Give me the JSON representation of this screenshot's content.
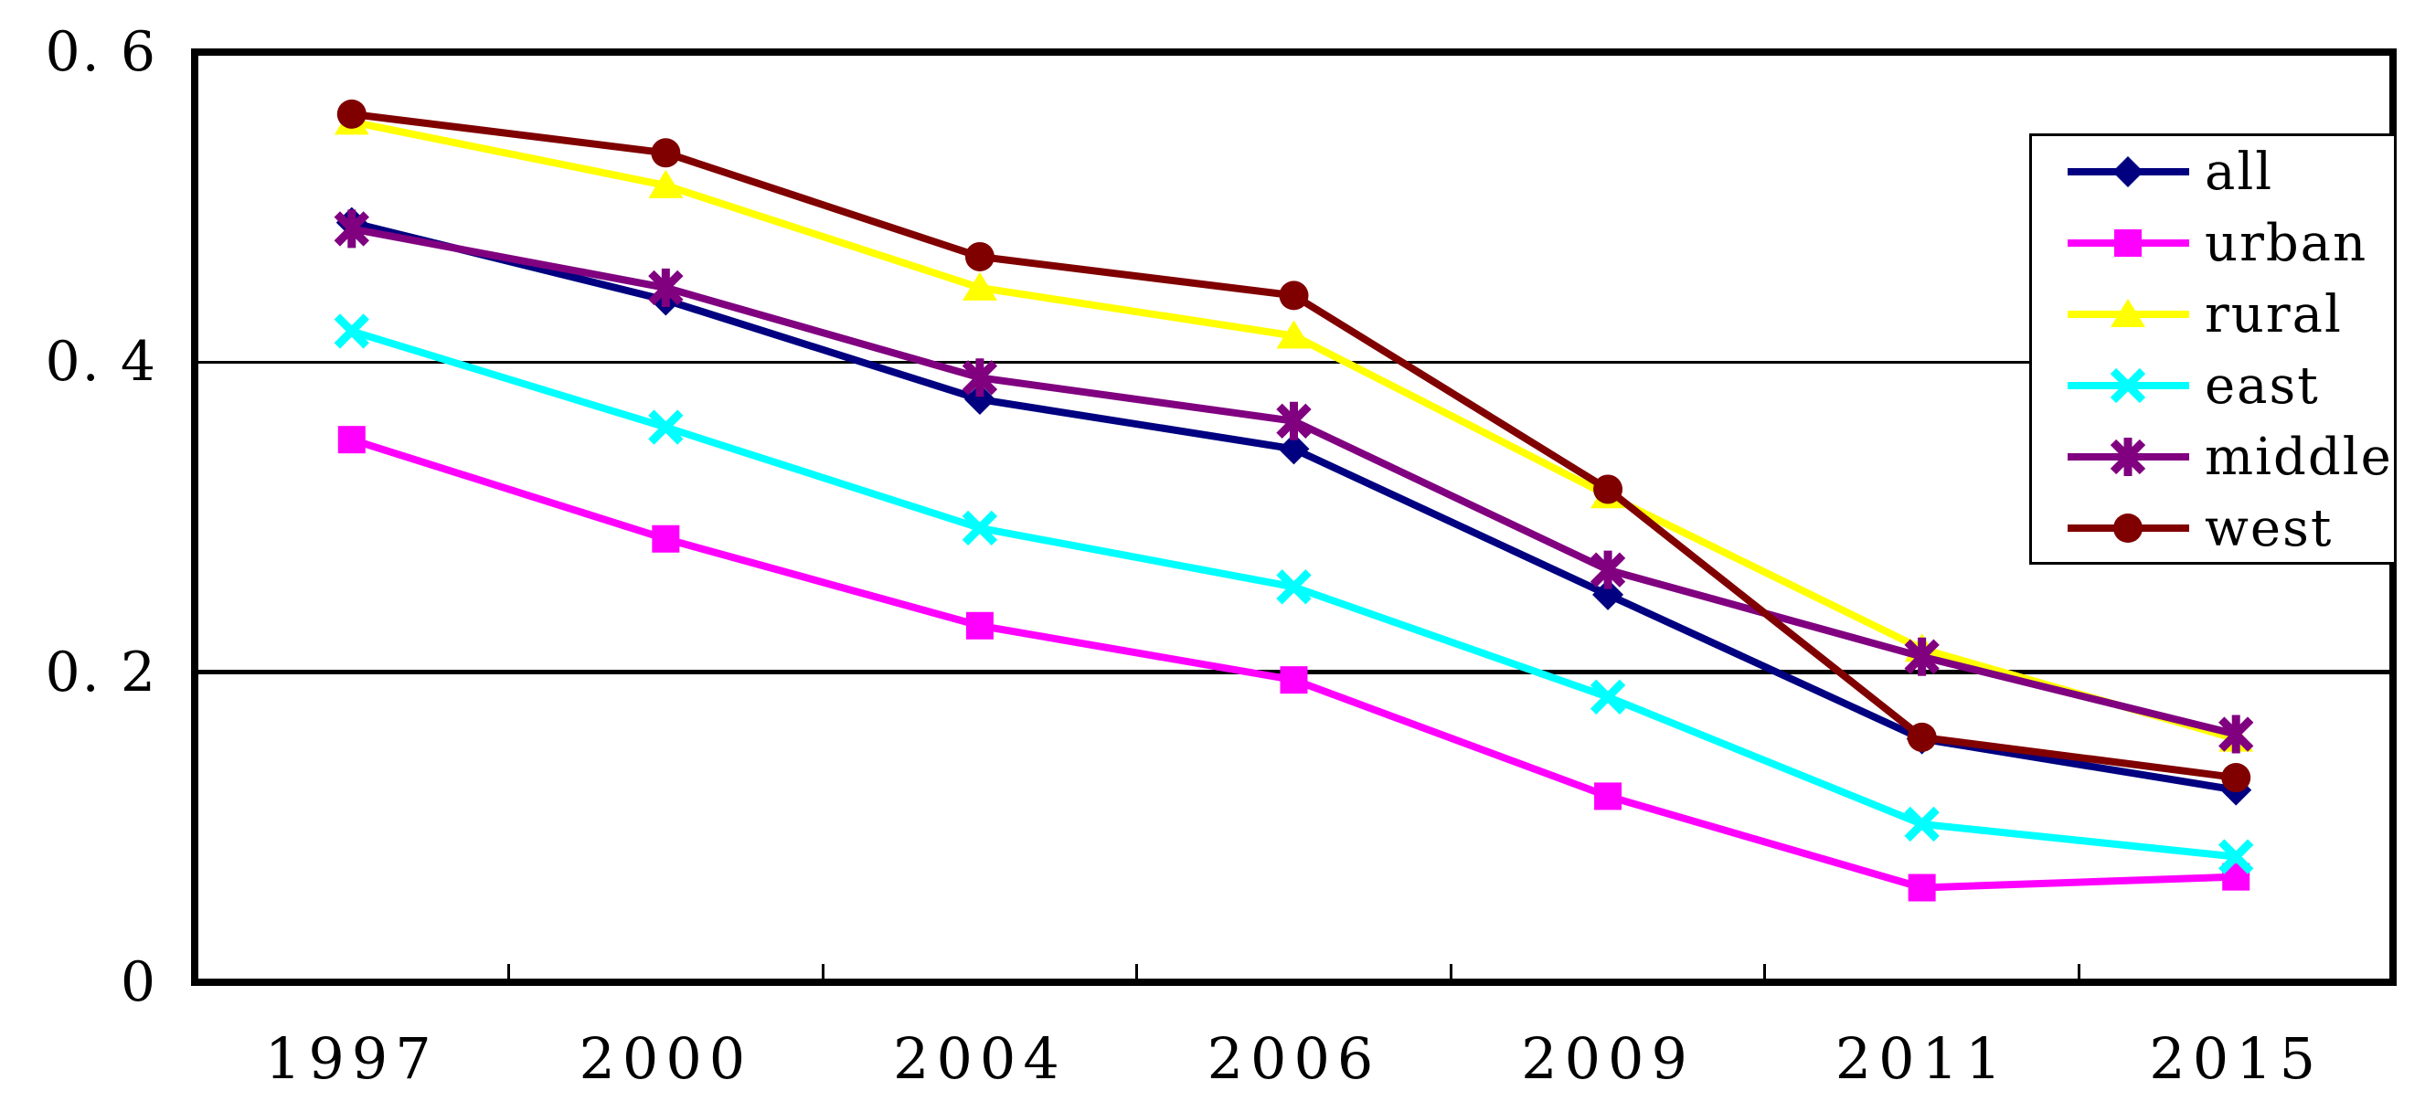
{
  "chart_data": {
    "type": "line",
    "title": "",
    "xlabel": "",
    "ylabel": "",
    "categories": [
      "1997",
      "2000",
      "2004",
      "2006",
      "2009",
      "2011",
      "2015"
    ],
    "series": [
      {
        "name": "all",
        "color": "#000080",
        "marker": "diamond",
        "values": [
          0.49,
          0.44,
          0.376,
          0.344,
          0.25,
          0.157,
          0.124
        ]
      },
      {
        "name": "urban",
        "color": "#FF00FF",
        "marker": "square",
        "values": [
          0.35,
          0.286,
          0.23,
          0.195,
          0.12,
          0.061,
          0.068
        ]
      },
      {
        "name": "rural",
        "color": "#FFFF00",
        "marker": "triangle",
        "values": [
          0.555,
          0.514,
          0.448,
          0.417,
          0.314,
          0.215,
          0.157
        ]
      },
      {
        "name": "east",
        "color": "#00FFFF",
        "marker": "x",
        "values": [
          0.42,
          0.358,
          0.293,
          0.255,
          0.184,
          0.102,
          0.081
        ]
      },
      {
        "name": "middle",
        "color": "#800080",
        "marker": "asterisk",
        "values": [
          0.486,
          0.448,
          0.39,
          0.362,
          0.266,
          0.21,
          0.16
        ]
      },
      {
        "name": "west",
        "color": "#800000",
        "marker": "circle",
        "values": [
          0.56,
          0.535,
          0.468,
          0.443,
          0.318,
          0.158,
          0.132
        ]
      }
    ],
    "ylim": [
      0,
      0.6
    ],
    "y_ticks": [
      {
        "label": "0. 6",
        "value": 0.6
      },
      {
        "label": "0. 4",
        "value": 0.4
      },
      {
        "label": "0. 2",
        "value": 0.2
      },
      {
        "label": "0",
        "value": 0.0
      }
    ],
    "gridline_values": [
      0.4,
      0.2
    ],
    "grid": "horizontal",
    "legend_position": "top-right"
  },
  "colors": {
    "background": "#FFFFFF",
    "axis": "#000000",
    "legend_border": "#000000"
  }
}
